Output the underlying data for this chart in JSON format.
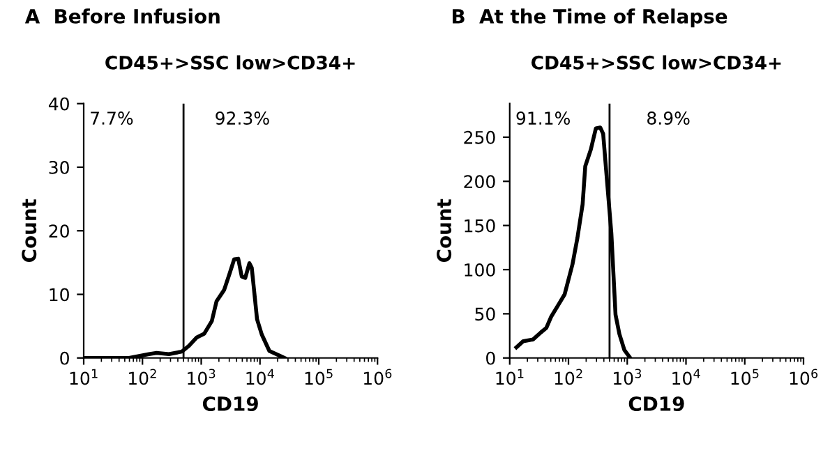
{
  "chart_data": [
    {
      "type": "line",
      "title": "A  Before Infusion",
      "subtitle": "CD45+>SSC low>CD34+",
      "xlabel": "CD19",
      "ylabel": "Count",
      "log": "x",
      "grid": false,
      "legend": false,
      "marker": "none",
      "line_style": "solid",
      "xlim": [
        10,
        1000000
      ],
      "xticks": [
        {
          "value": 10,
          "label": "10$^{1}$"
        },
        {
          "value": 100,
          "label": "10$^{2}$"
        },
        {
          "value": 1000,
          "label": "10$^{3}$"
        },
        {
          "value": 10000,
          "label": "10$^{4}$"
        },
        {
          "value": 100000,
          "label": "10$^{5}$"
        },
        {
          "value": 1000000,
          "label": "10$^{6}$"
        }
      ],
      "ylim": [
        0,
        40
      ],
      "yticks": [
        0,
        10,
        20,
        30,
        40
      ],
      "ref_lines": [
        {
          "axis": "x",
          "value": 500,
          "label": null,
          "color": "#000000"
        }
      ],
      "annotations": [
        "7.7%",
        "92.3%"
      ],
      "series": [
        {
          "color": "#000000",
          "x": [
            10,
            27,
            59,
            129,
            174,
            282,
            468,
            617,
            832,
            1122,
            1514,
            1820,
            2455,
            3020,
            3630,
            4266,
            4898,
            5623,
            6607,
            7244,
            8913,
            10715,
            14454,
            26303
          ],
          "values": [
            0,
            0,
            0,
            0.6,
            0.8,
            0.6,
            1,
            1.9,
            3.2,
            3.8,
            5.8,
            8.9,
            10.7,
            13.2,
            15.5,
            15.6,
            12.8,
            12.6,
            14.9,
            14.2,
            6.1,
            3.7,
            1.1,
            0
          ]
        }
      ]
    },
    {
      "type": "line",
      "title": "B  At the Time of Relapse",
      "subtitle": "CD45+>SSC low>CD34+",
      "xlabel": "CD19",
      "ylabel": "Count",
      "log": "x",
      "grid": false,
      "legend": false,
      "marker": "none",
      "line_style": "solid",
      "xlim": [
        10,
        1000000
      ],
      "xticks": [
        {
          "value": 10,
          "label": "10$^{1}$"
        },
        {
          "value": 100,
          "label": "10$^{2}$"
        },
        {
          "value": 1000,
          "label": "10$^{3}$"
        },
        {
          "value": 10000,
          "label": "10$^{4}$"
        },
        {
          "value": 100000,
          "label": "10$^{5}$"
        },
        {
          "value": 1000000,
          "label": "10$^{6}$"
        }
      ],
      "ylim": [
        0,
        288
      ],
      "yticks": [
        0,
        50,
        100,
        150,
        200,
        250
      ],
      "ref_lines": [
        {
          "axis": "x",
          "value": 500,
          "label": null,
          "color": "#000000"
        }
      ],
      "annotations": [
        "91.1%",
        "8.9%"
      ],
      "series": [
        {
          "color": "#000000",
          "x": [
            13,
            17,
            25,
            34,
            42,
            51,
            70,
            86,
            117,
            142,
            174,
            193,
            240,
            265,
            293,
            347,
            389,
            437,
            537,
            632,
            736,
            894,
            1096
          ],
          "values": [
            12,
            19,
            21,
            29,
            34,
            47,
            62,
            72,
            106,
            136,
            174,
            217,
            236,
            248,
            260,
            261,
            254,
            213,
            141,
            49,
            27,
            9,
            1
          ]
        }
      ]
    }
  ]
}
